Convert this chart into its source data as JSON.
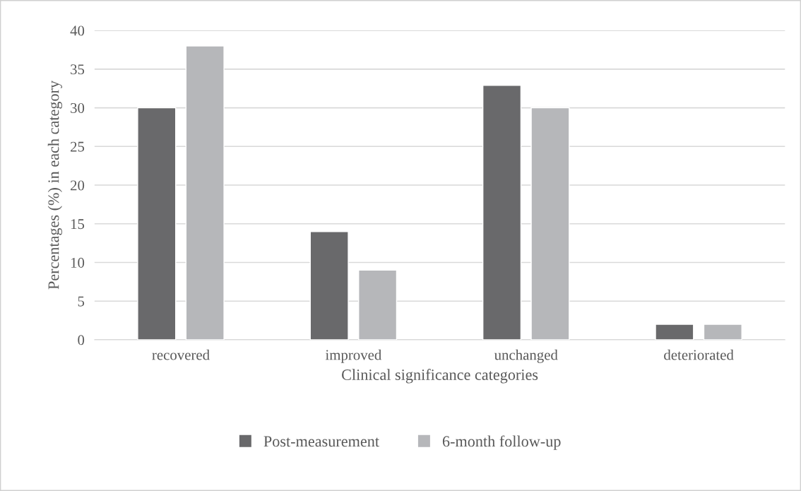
{
  "chart_data": {
    "type": "bar",
    "xlabel": "Clinical significance categories",
    "ylabel": "Percentages (%) in each category",
    "categories": [
      "recovered",
      "improved",
      "unchanged",
      "deteriorated"
    ],
    "series": [
      {
        "name": "Post-measurement",
        "color": "#69696b",
        "values": [
          30,
          14,
          32.9,
          2
        ]
      },
      {
        "name": "6-month follow-up",
        "color": "#b6b7ba",
        "values": [
          38,
          9,
          30,
          2
        ]
      }
    ],
    "ylim": [
      0,
      40
    ],
    "yticks": [
      0,
      5,
      10,
      15,
      20,
      25,
      30,
      35,
      40
    ],
    "grid": "y",
    "legend": "bottom"
  }
}
